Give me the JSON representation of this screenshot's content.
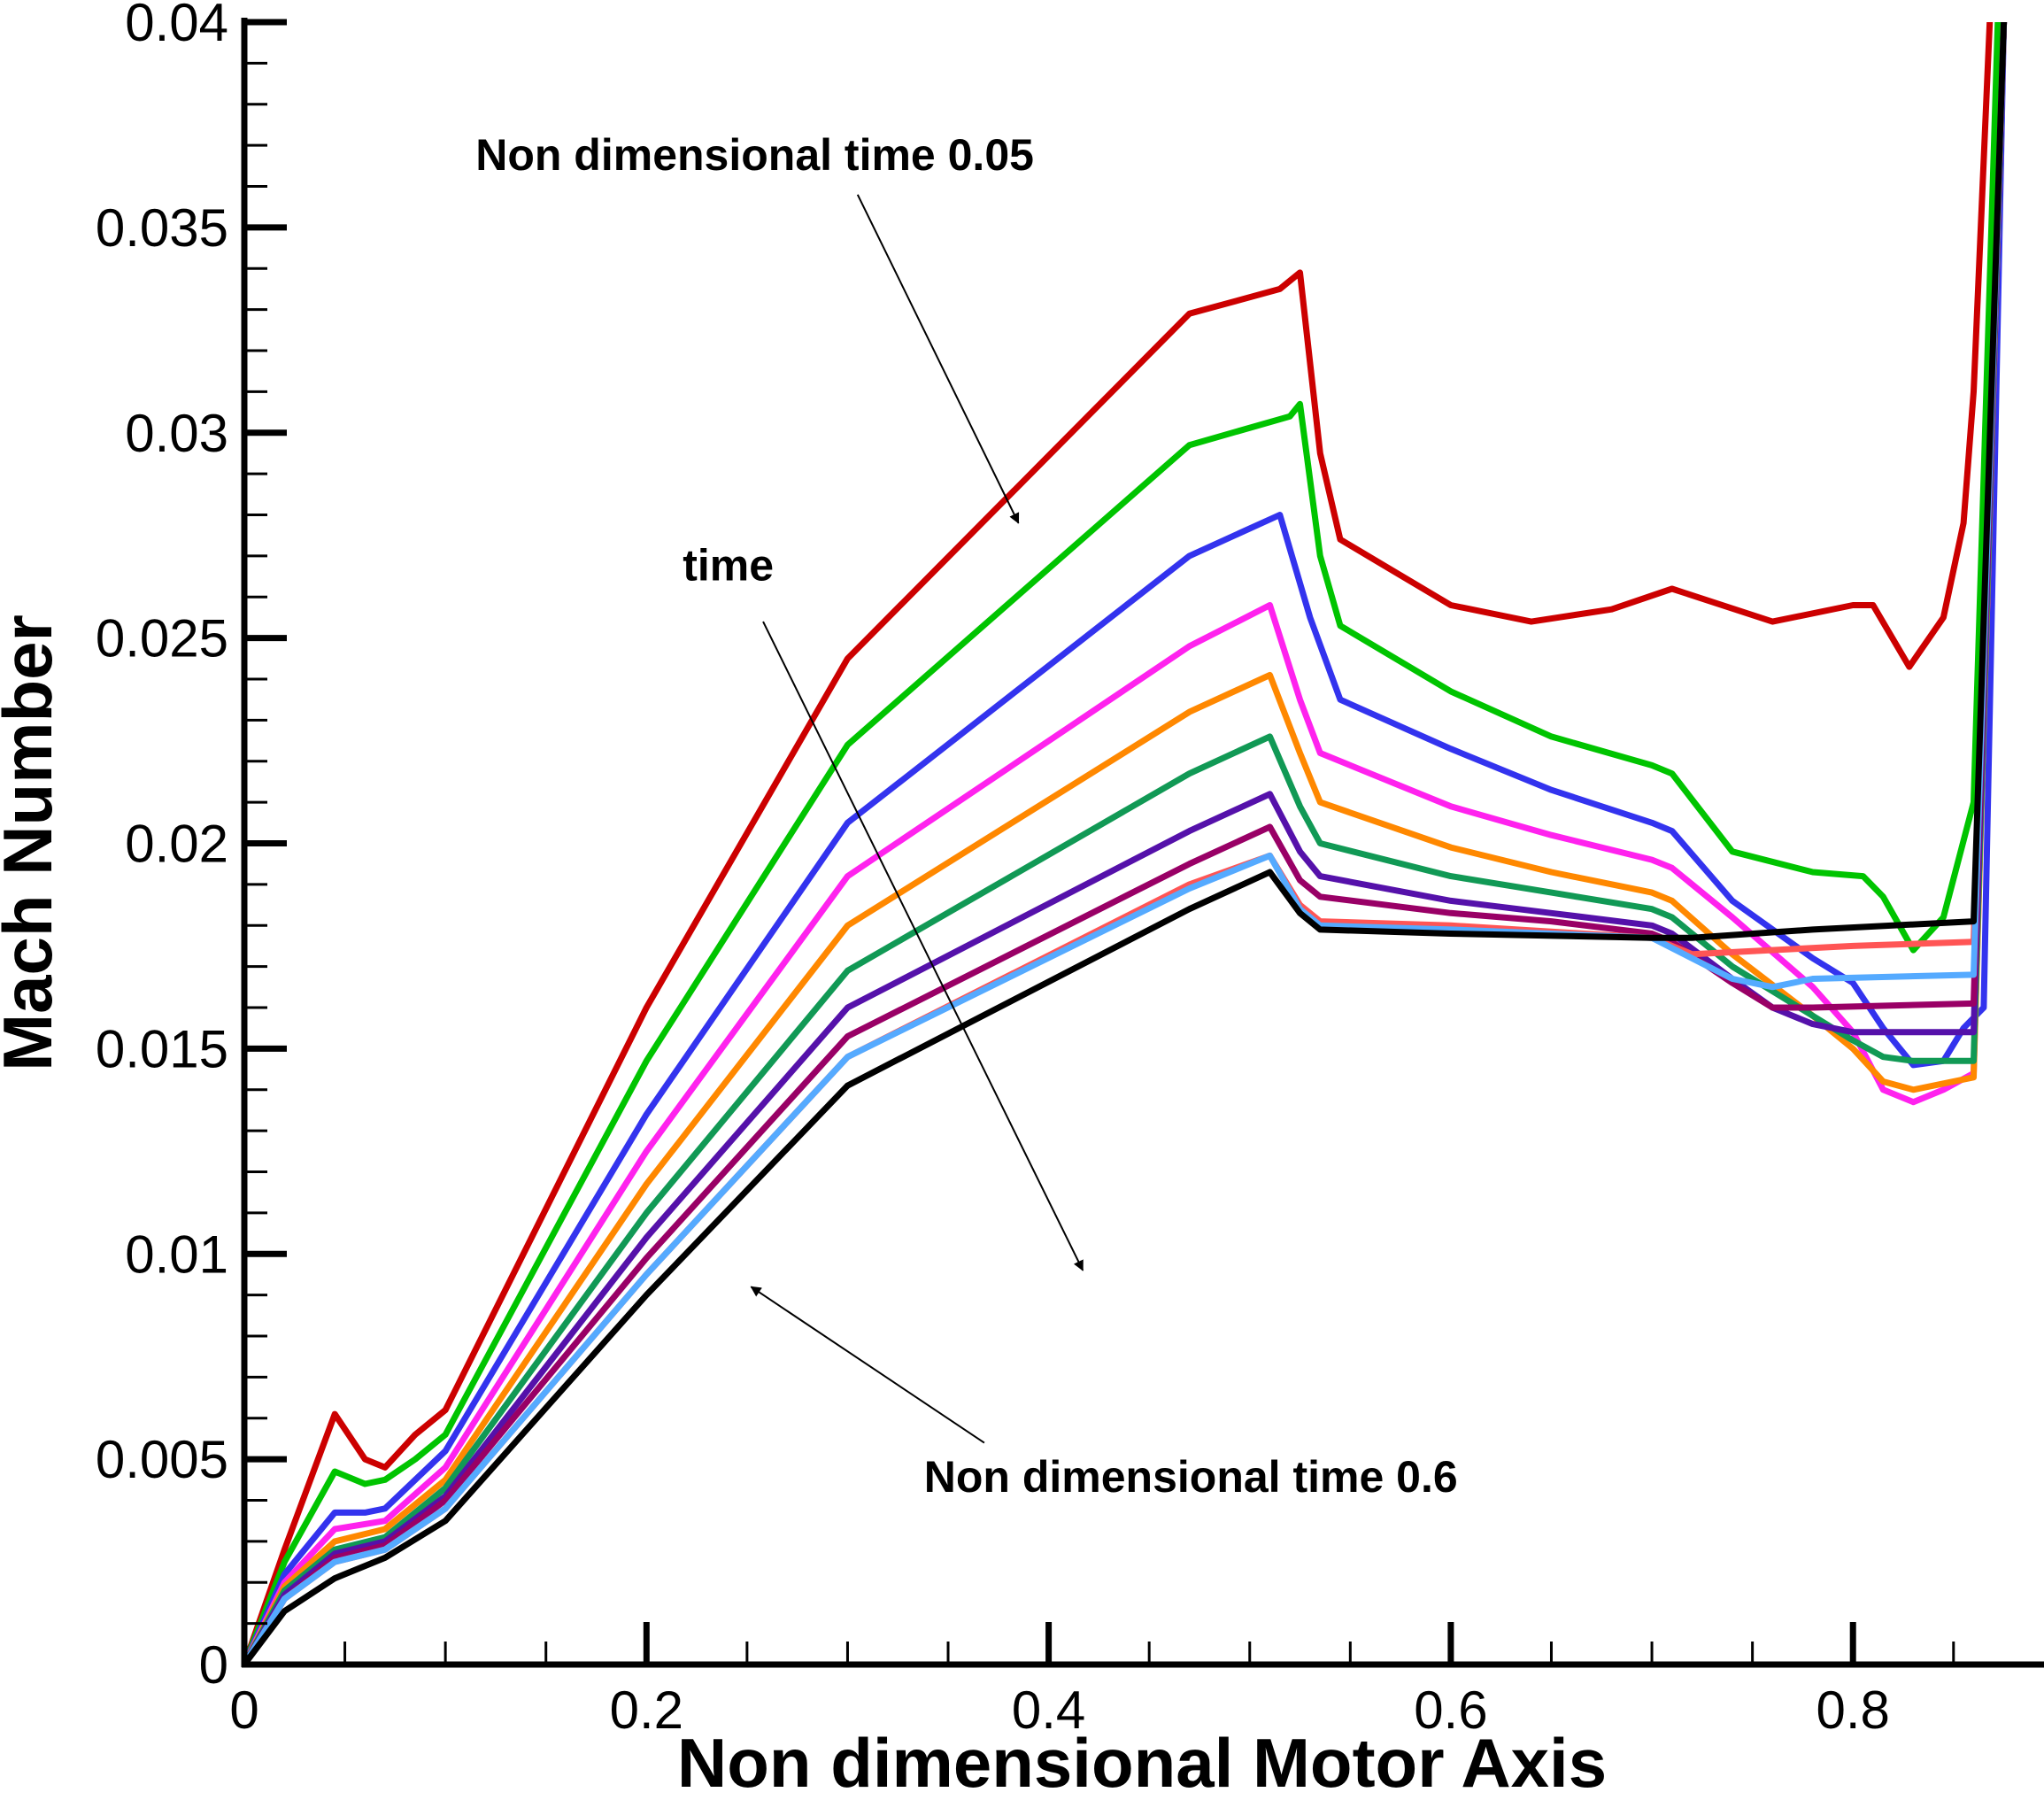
{
  "chart_data": {
    "type": "line",
    "title": "",
    "xlabel": "Non dimensional Motor Axis",
    "ylabel": "Mach Number",
    "xlim": [
      0,
      0.895
    ],
    "ylim": [
      0,
      0.04
    ],
    "grid": false,
    "legend": "none",
    "x_ticks": [
      "0",
      "0.2",
      "0.4",
      "0.6",
      "0.8"
    ],
    "y_ticks": [
      "0",
      "0.005",
      "0.01",
      "0.015",
      "0.02",
      "0.025",
      "0.03",
      "0.035",
      "0.04"
    ],
    "annotations": [
      {
        "text": "Non dimensional time 0.05",
        "x": 0.115,
        "y": 0.0364,
        "arrow_from": [
          0.305,
          0.0358
        ],
        "arrow_to": [
          0.385,
          0.0278
        ]
      },
      {
        "text": "time",
        "x": 0.218,
        "y": 0.0264,
        "arrow_from": [
          0.258,
          0.0254
        ],
        "arrow_to": [
          0.417,
          0.0096
        ]
      },
      {
        "text": "Non dimensional time 0.6",
        "x": 0.338,
        "y": 0.0042,
        "arrow_from": [
          0.368,
          0.0054
        ],
        "arrow_to": [
          0.252,
          0.0092
        ]
      }
    ],
    "series": [
      {
        "color": "#cc0000",
        "points": [
          [
            0,
            0
          ],
          [
            0.02,
            0.0028
          ],
          [
            0.045,
            0.0061
          ],
          [
            0.06,
            0.005
          ],
          [
            0.07,
            0.0048
          ],
          [
            0.085,
            0.0056
          ],
          [
            0.1,
            0.0062
          ],
          [
            0.2,
            0.016
          ],
          [
            0.3,
            0.0245
          ],
          [
            0.47,
            0.0329
          ],
          [
            0.515,
            0.0335
          ],
          [
            0.525,
            0.0339
          ],
          [
            0.535,
            0.0295
          ],
          [
            0.545,
            0.0274
          ],
          [
            0.6,
            0.0258
          ],
          [
            0.64,
            0.0254
          ],
          [
            0.68,
            0.0257
          ],
          [
            0.71,
            0.0262
          ],
          [
            0.76,
            0.0254
          ],
          [
            0.8,
            0.0258
          ],
          [
            0.81,
            0.0258
          ],
          [
            0.828,
            0.0243
          ],
          [
            0.845,
            0.0255
          ],
          [
            0.855,
            0.0278
          ],
          [
            0.86,
            0.031
          ],
          [
            0.868,
            0.04
          ]
        ]
      },
      {
        "color": "#00c400",
        "points": [
          [
            0,
            0
          ],
          [
            0.02,
            0.0025
          ],
          [
            0.045,
            0.0047
          ],
          [
            0.06,
            0.0044
          ],
          [
            0.07,
            0.0045
          ],
          [
            0.085,
            0.005
          ],
          [
            0.1,
            0.0056
          ],
          [
            0.2,
            0.0147
          ],
          [
            0.3,
            0.0224
          ],
          [
            0.47,
            0.0297
          ],
          [
            0.52,
            0.0304
          ],
          [
            0.525,
            0.0307
          ],
          [
            0.535,
            0.027
          ],
          [
            0.545,
            0.0253
          ],
          [
            0.6,
            0.0237
          ],
          [
            0.65,
            0.0226
          ],
          [
            0.7,
            0.0219
          ],
          [
            0.71,
            0.0217
          ],
          [
            0.74,
            0.0198
          ],
          [
            0.78,
            0.0193
          ],
          [
            0.805,
            0.0192
          ],
          [
            0.815,
            0.0187
          ],
          [
            0.83,
            0.0174
          ],
          [
            0.845,
            0.0182
          ],
          [
            0.86,
            0.021
          ],
          [
            0.872,
            0.04
          ]
        ]
      },
      {
        "color": "#3333ee",
        "points": [
          [
            0,
            0
          ],
          [
            0.02,
            0.0022
          ],
          [
            0.045,
            0.0037
          ],
          [
            0.06,
            0.0037
          ],
          [
            0.07,
            0.0038
          ],
          [
            0.085,
            0.0045
          ],
          [
            0.1,
            0.0052
          ],
          [
            0.2,
            0.0134
          ],
          [
            0.3,
            0.0205
          ],
          [
            0.47,
            0.027
          ],
          [
            0.515,
            0.028
          ],
          [
            0.53,
            0.0255
          ],
          [
            0.545,
            0.0235
          ],
          [
            0.6,
            0.0223
          ],
          [
            0.65,
            0.0213
          ],
          [
            0.7,
            0.0205
          ],
          [
            0.71,
            0.0203
          ],
          [
            0.74,
            0.0186
          ],
          [
            0.78,
            0.0172
          ],
          [
            0.8,
            0.0166
          ],
          [
            0.815,
            0.0155
          ],
          [
            0.83,
            0.0146
          ],
          [
            0.845,
            0.0147
          ],
          [
            0.855,
            0.0155
          ],
          [
            0.865,
            0.016
          ],
          [
            0.875,
            0.04
          ]
        ]
      },
      {
        "color": "#ff22ee",
        "points": [
          [
            0,
            0
          ],
          [
            0.02,
            0.002
          ],
          [
            0.045,
            0.0033
          ],
          [
            0.07,
            0.0035
          ],
          [
            0.1,
            0.0048
          ],
          [
            0.2,
            0.0125
          ],
          [
            0.3,
            0.0192
          ],
          [
            0.47,
            0.0248
          ],
          [
            0.51,
            0.0258
          ],
          [
            0.525,
            0.0235
          ],
          [
            0.535,
            0.0222
          ],
          [
            0.6,
            0.0209
          ],
          [
            0.65,
            0.0202
          ],
          [
            0.7,
            0.0196
          ],
          [
            0.71,
            0.0194
          ],
          [
            0.74,
            0.0182
          ],
          [
            0.78,
            0.0165
          ],
          [
            0.8,
            0.0154
          ],
          [
            0.815,
            0.014
          ],
          [
            0.83,
            0.0137
          ],
          [
            0.845,
            0.014
          ],
          [
            0.86,
            0.0144
          ],
          [
            0.875,
            0.04
          ]
        ]
      },
      {
        "color": "#ff8800",
        "points": [
          [
            0,
            0
          ],
          [
            0.02,
            0.0019
          ],
          [
            0.045,
            0.003
          ],
          [
            0.07,
            0.0033
          ],
          [
            0.1,
            0.0045
          ],
          [
            0.2,
            0.0117
          ],
          [
            0.3,
            0.018
          ],
          [
            0.47,
            0.0232
          ],
          [
            0.51,
            0.0241
          ],
          [
            0.525,
            0.0222
          ],
          [
            0.535,
            0.021
          ],
          [
            0.6,
            0.0199
          ],
          [
            0.65,
            0.0193
          ],
          [
            0.7,
            0.0188
          ],
          [
            0.71,
            0.0186
          ],
          [
            0.74,
            0.0173
          ],
          [
            0.78,
            0.0158
          ],
          [
            0.8,
            0.015
          ],
          [
            0.815,
            0.0142
          ],
          [
            0.83,
            0.014
          ],
          [
            0.86,
            0.0143
          ],
          [
            0.875,
            0.04
          ]
        ]
      },
      {
        "color": "#119955",
        "points": [
          [
            0,
            0
          ],
          [
            0.02,
            0.0018
          ],
          [
            0.045,
            0.0028
          ],
          [
            0.07,
            0.0031
          ],
          [
            0.1,
            0.0043
          ],
          [
            0.2,
            0.011
          ],
          [
            0.3,
            0.0169
          ],
          [
            0.47,
            0.0217
          ],
          [
            0.51,
            0.0226
          ],
          [
            0.525,
            0.0209
          ],
          [
            0.535,
            0.02
          ],
          [
            0.6,
            0.0192
          ],
          [
            0.65,
            0.0188
          ],
          [
            0.7,
            0.0184
          ],
          [
            0.71,
            0.0182
          ],
          [
            0.74,
            0.017
          ],
          [
            0.78,
            0.0158
          ],
          [
            0.8,
            0.0152
          ],
          [
            0.815,
            0.0148
          ],
          [
            0.83,
            0.0147
          ],
          [
            0.86,
            0.0147
          ],
          [
            0.875,
            0.04
          ]
        ]
      },
      {
        "color": "#5511aa",
        "points": [
          [
            0,
            0
          ],
          [
            0.02,
            0.0017
          ],
          [
            0.045,
            0.0027
          ],
          [
            0.07,
            0.003
          ],
          [
            0.1,
            0.0041
          ],
          [
            0.2,
            0.0104
          ],
          [
            0.3,
            0.016
          ],
          [
            0.47,
            0.0203
          ],
          [
            0.51,
            0.0212
          ],
          [
            0.525,
            0.0198
          ],
          [
            0.535,
            0.0192
          ],
          [
            0.6,
            0.0186
          ],
          [
            0.65,
            0.0183
          ],
          [
            0.7,
            0.018
          ],
          [
            0.71,
            0.0178
          ],
          [
            0.74,
            0.0167
          ],
          [
            0.76,
            0.016
          ],
          [
            0.78,
            0.0156
          ],
          [
            0.8,
            0.0154
          ],
          [
            0.86,
            0.0154
          ],
          [
            0.875,
            0.04
          ]
        ]
      },
      {
        "color": "#990066",
        "points": [
          [
            0,
            0
          ],
          [
            0.02,
            0.0016
          ],
          [
            0.045,
            0.0026
          ],
          [
            0.07,
            0.0029
          ],
          [
            0.1,
            0.004
          ],
          [
            0.2,
            0.0099
          ],
          [
            0.3,
            0.0153
          ],
          [
            0.47,
            0.0195
          ],
          [
            0.51,
            0.0204
          ],
          [
            0.525,
            0.0191
          ],
          [
            0.535,
            0.0187
          ],
          [
            0.6,
            0.0183
          ],
          [
            0.65,
            0.0181
          ],
          [
            0.7,
            0.0178
          ],
          [
            0.71,
            0.0176
          ],
          [
            0.74,
            0.0166
          ],
          [
            0.76,
            0.016
          ],
          [
            0.78,
            0.016
          ],
          [
            0.86,
            0.0161
          ],
          [
            0.875,
            0.04
          ]
        ]
      },
      {
        "color": "#ff5555",
        "points": [
          [
            0,
            0
          ],
          [
            0.02,
            0.0016
          ],
          [
            0.045,
            0.0025
          ],
          [
            0.07,
            0.0028
          ],
          [
            0.1,
            0.0038
          ],
          [
            0.2,
            0.0095
          ],
          [
            0.3,
            0.0148
          ],
          [
            0.47,
            0.019
          ],
          [
            0.51,
            0.0197
          ],
          [
            0.525,
            0.0185
          ],
          [
            0.535,
            0.0181
          ],
          [
            0.6,
            0.018
          ],
          [
            0.7,
            0.0177
          ],
          [
            0.72,
            0.0173
          ],
          [
            0.8,
            0.0175
          ],
          [
            0.86,
            0.0176
          ],
          [
            0.875,
            0.04
          ]
        ]
      },
      {
        "color": "#55aaff",
        "points": [
          [
            0,
            0
          ],
          [
            0.02,
            0.0016
          ],
          [
            0.045,
            0.0025
          ],
          [
            0.07,
            0.0028
          ],
          [
            0.1,
            0.0038
          ],
          [
            0.2,
            0.0095
          ],
          [
            0.3,
            0.0148
          ],
          [
            0.47,
            0.0189
          ],
          [
            0.51,
            0.0197
          ],
          [
            0.525,
            0.0184
          ],
          [
            0.535,
            0.018
          ],
          [
            0.6,
            0.0179
          ],
          [
            0.7,
            0.0177
          ],
          [
            0.74,
            0.0167
          ],
          [
            0.76,
            0.0165
          ],
          [
            0.78,
            0.0167
          ],
          [
            0.86,
            0.0168
          ],
          [
            0.875,
            0.04
          ]
        ]
      },
      {
        "color": "#000000",
        "points": [
          [
            0,
            0
          ],
          [
            0.02,
            0.0013
          ],
          [
            0.045,
            0.0021
          ],
          [
            0.07,
            0.0026
          ],
          [
            0.1,
            0.0035
          ],
          [
            0.2,
            0.009
          ],
          [
            0.3,
            0.0141
          ],
          [
            0.47,
            0.0184
          ],
          [
            0.51,
            0.0193
          ],
          [
            0.525,
            0.0183
          ],
          [
            0.535,
            0.0179
          ],
          [
            0.6,
            0.0178
          ],
          [
            0.7,
            0.0177
          ],
          [
            0.72,
            0.0177
          ],
          [
            0.78,
            0.0179
          ],
          [
            0.86,
            0.0181
          ],
          [
            0.875,
            0.04
          ]
        ]
      }
    ]
  }
}
